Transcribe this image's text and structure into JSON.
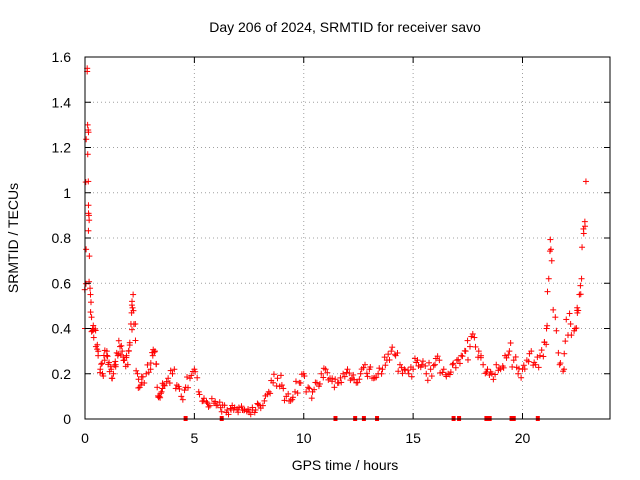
{
  "chart_data": {
    "type": "scatter",
    "title": "Day 206 of 2024, SRMTID for receiver savo",
    "xlabel": "GPS time / hours",
    "ylabel": "SRMTID / TECUs",
    "xlim": [
      0,
      24
    ],
    "ylim": [
      0,
      1.6
    ],
    "xticks": [
      0,
      5,
      10,
      15,
      20
    ],
    "yticks": [
      0,
      0.2,
      0.4,
      0.6,
      0.8,
      1,
      1.2,
      1.4,
      1.6
    ],
    "xtick_labels": [
      "0",
      "5",
      "10",
      "15",
      "20"
    ],
    "ytick_labels": [
      "0",
      "0.2",
      "0.4",
      "0.6",
      "0.8",
      "1",
      "1.2",
      "1.4",
      "1.6"
    ],
    "grid": true,
    "marker": "+",
    "color": "#ff0000",
    "series": [
      {
        "name": "SRMTID",
        "x": [
          0.0,
          0.05,
          0.1,
          0.12,
          0.15,
          0.18,
          0.2,
          0.25,
          0.3,
          0.35,
          0.4,
          0.5,
          0.6,
          0.7,
          0.8,
          0.9,
          1.0,
          1.1,
          1.2,
          1.3,
          1.4,
          1.5,
          1.6,
          1.7,
          1.8,
          1.9,
          2.0,
          2.1,
          2.15,
          2.2,
          2.3,
          2.4,
          2.5,
          2.6,
          2.8,
          3.0,
          3.1,
          3.2,
          3.3,
          3.4,
          3.5,
          3.6,
          3.8,
          4.0,
          4.2,
          4.4,
          4.6,
          4.8,
          5.0,
          5.2,
          5.4,
          5.6,
          5.8,
          6.0,
          6.2,
          6.5,
          6.8,
          7.0,
          7.2,
          7.5,
          7.8,
          8.0,
          8.2,
          8.4,
          8.6,
          8.8,
          9.0,
          9.2,
          9.4,
          9.6,
          9.8,
          10.0,
          10.2,
          10.4,
          10.6,
          10.8,
          11.0,
          11.2,
          11.4,
          11.6,
          11.8,
          12.0,
          12.2,
          12.4,
          12.6,
          12.8,
          13.0,
          13.2,
          13.4,
          13.6,
          13.8,
          14.0,
          14.2,
          14.4,
          14.6,
          14.8,
          15.0,
          15.2,
          15.4,
          15.6,
          15.8,
          16.0,
          16.2,
          16.4,
          16.6,
          16.8,
          17.0,
          17.2,
          17.4,
          17.6,
          17.8,
          18.0,
          18.2,
          18.4,
          18.6,
          18.8,
          19.0,
          19.2,
          19.4,
          19.6,
          19.8,
          20.0,
          20.2,
          20.4,
          20.6,
          20.8,
          21.0,
          21.1,
          21.2,
          21.3,
          21.5,
          21.7,
          21.9,
          22.0,
          22.2,
          22.4,
          22.5,
          22.6,
          22.7,
          22.8,
          22.9
        ],
        "y": [
          0.4,
          0.75,
          1.55,
          1.3,
          1.05,
          0.9,
          0.72,
          0.55,
          0.45,
          0.4,
          0.36,
          0.32,
          0.28,
          0.22,
          0.2,
          0.26,
          0.3,
          0.25,
          0.22,
          0.2,
          0.24,
          0.28,
          0.32,
          0.3,
          0.26,
          0.28,
          0.3,
          0.42,
          0.52,
          0.55,
          0.42,
          0.2,
          0.14,
          0.16,
          0.2,
          0.22,
          0.28,
          0.3,
          0.14,
          0.1,
          0.12,
          0.15,
          0.18,
          0.2,
          0.15,
          0.1,
          0.14,
          0.18,
          0.22,
          0.12,
          0.08,
          0.07,
          0.09,
          0.06,
          0.05,
          0.04,
          0.04,
          0.03,
          0.04,
          0.03,
          0.04,
          0.06,
          0.08,
          0.12,
          0.16,
          0.18,
          0.15,
          0.1,
          0.08,
          0.12,
          0.16,
          0.2,
          0.14,
          0.12,
          0.16,
          0.2,
          0.22,
          0.18,
          0.14,
          0.16,
          0.2,
          0.22,
          0.18,
          0.16,
          0.2,
          0.24,
          0.22,
          0.18,
          0.2,
          0.22,
          0.26,
          0.3,
          0.28,
          0.24,
          0.22,
          0.2,
          0.22,
          0.26,
          0.24,
          0.2,
          0.22,
          0.24,
          0.26,
          0.22,
          0.2,
          0.24,
          0.26,
          0.28,
          0.3,
          0.32,
          0.36,
          0.3,
          0.24,
          0.22,
          0.2,
          0.24,
          0.22,
          0.28,
          0.3,
          0.26,
          0.2,
          0.22,
          0.26,
          0.3,
          0.24,
          0.28,
          0.34,
          0.4,
          0.62,
          0.75,
          0.45,
          0.24,
          0.22,
          0.44,
          0.42,
          0.4,
          0.48,
          0.55,
          0.62,
          0.82,
          1.05
        ]
      }
    ],
    "x_axis_markers": [
      4.6,
      6.25,
      11.45,
      12.35,
      12.75,
      13.35,
      16.85,
      17.1,
      18.35,
      18.5,
      19.5,
      19.6,
      20.7
    ]
  }
}
